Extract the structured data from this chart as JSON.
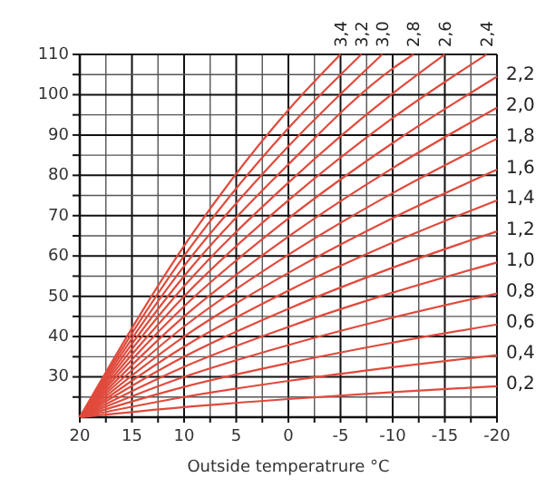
{
  "chart_data": {
    "type": "line",
    "xlabel": "Outside temperatrure °C",
    "xlim": [
      20,
      -20
    ],
    "ylim": [
      20,
      110
    ],
    "xticks": [
      20,
      {
        "value": 17.5,
        "label": null
      },
      15,
      {
        "value": 12.5,
        "label": null
      },
      10,
      {
        "value": 7.5,
        "label": null
      },
      5,
      {
        "value": 2.5,
        "label": null
      },
      0,
      {
        "value": -2.5,
        "label": null
      },
      -5,
      {
        "value": -7.5,
        "label": null
      },
      -10,
      {
        "value": -12.5,
        "label": null
      },
      -15,
      {
        "value": -17.5,
        "label": null
      },
      -20
    ],
    "yticks": [
      {
        "value": 25,
        "label": null
      },
      30,
      {
        "value": 35,
        "label": null
      },
      40,
      {
        "value": 45,
        "label": null
      },
      50,
      {
        "value": 55,
        "label": null
      },
      60,
      {
        "value": 65,
        "label": null
      },
      70,
      {
        "value": 75,
        "label": null
      },
      80,
      {
        "value": 85,
        "label": null
      },
      90,
      {
        "value": 95,
        "label": null
      },
      100,
      {
        "value": 105,
        "label": null
      },
      110
    ],
    "grid": true,
    "marker": "none",
    "line_style": "solid",
    "series": [
      {
        "name": "0,2",
        "color": "#e04a3c",
        "x": [
          20,
          10,
          0,
          -10,
          -20
        ],
        "values": [
          20,
          22.5,
          24.5,
          26.2,
          27.7
        ]
      },
      {
        "name": "0,4",
        "color": "#e04a3c",
        "x": [
          20,
          10,
          0,
          -10,
          -20
        ],
        "values": [
          20,
          25,
          29,
          32.4,
          35.4
        ]
      },
      {
        "name": "0,6",
        "color": "#e04a3c",
        "x": [
          20,
          10,
          0,
          -10,
          -20
        ],
        "values": [
          20,
          27.5,
          33.4,
          38.5,
          43
        ]
      },
      {
        "name": "0,8",
        "color": "#e04a3c",
        "x": [
          20,
          10,
          0,
          -10,
          -20
        ],
        "values": [
          20,
          30,
          37.9,
          44.7,
          50.7
        ]
      },
      {
        "name": "1,0",
        "color": "#e04a3c",
        "x": [
          20,
          10,
          0,
          -10,
          -20
        ],
        "values": [
          20,
          32.5,
          42.4,
          50.9,
          58.4
        ]
      },
      {
        "name": "1,2",
        "color": "#e04a3c",
        "x": [
          20,
          10,
          0,
          -10,
          -20
        ],
        "values": [
          20,
          35,
          46.9,
          57.1,
          66.1
        ]
      },
      {
        "name": "1,4",
        "color": "#e04a3c",
        "x": [
          20,
          10,
          0,
          -10,
          -20
        ],
        "values": [
          20,
          37.5,
          51.4,
          63.3,
          73.8
        ]
      },
      {
        "name": "1,6",
        "color": "#e04a3c",
        "x": [
          20,
          10,
          0,
          -10,
          -20
        ],
        "values": [
          20,
          40,
          55.8,
          69.4,
          81.4
        ]
      },
      {
        "name": "1,8",
        "color": "#e04a3c",
        "x": [
          20,
          10,
          0,
          -10,
          -20
        ],
        "values": [
          20,
          42.5,
          60.3,
          75.6,
          89.1
        ]
      },
      {
        "name": "2,0",
        "color": "#e04a3c",
        "x": [
          20,
          10,
          0,
          -10,
          -20
        ],
        "values": [
          20,
          45,
          64.8,
          81.8,
          96.8
        ]
      },
      {
        "name": "2,2",
        "color": "#e04a3c",
        "x": [
          20,
          10,
          0,
          -10,
          -20
        ],
        "values": [
          20,
          47.5,
          69.3,
          88,
          104.5
        ]
      },
      {
        "name": "2,4",
        "color": "#e04a3c",
        "x": [
          20,
          10,
          0,
          -10,
          -19
        ],
        "values": [
          20,
          50,
          73.8,
          94.2,
          110
        ]
      },
      {
        "name": "2,6",
        "color": "#e04a3c",
        "x": [
          20,
          10,
          0,
          -10,
          -15
        ],
        "values": [
          20,
          52.5,
          78.2,
          100.3,
          110
        ]
      },
      {
        "name": "2,8",
        "color": "#e04a3c",
        "x": [
          20,
          10,
          0,
          -10,
          -12
        ],
        "values": [
          20,
          55,
          82.7,
          106.5,
          110
        ]
      },
      {
        "name": "3,0",
        "color": "#e04a3c",
        "x": [
          20,
          10,
          0,
          -9
        ],
        "values": [
          20,
          57.5,
          87.2,
          110
        ]
      },
      {
        "name": "3,2",
        "color": "#e04a3c",
        "x": [
          20,
          10,
          0,
          -7
        ],
        "values": [
          20,
          60,
          91.7,
          110
        ]
      },
      {
        "name": "3,4",
        "color": "#e04a3c",
        "x": [
          20,
          10,
          0,
          -5
        ],
        "values": [
          20,
          62.5,
          96.2,
          110
        ]
      }
    ]
  }
}
